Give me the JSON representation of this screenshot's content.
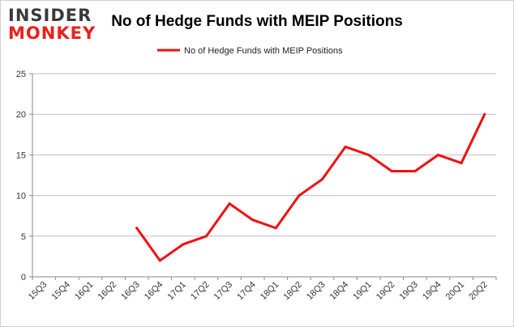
{
  "brand": {
    "line1": "INSIDER",
    "line2": "MONKEY"
  },
  "colors": {
    "series": "#ee1111",
    "brand_red": "#e8211e",
    "brand_dark": "#3a3a3a",
    "grid": "#bfbfbf",
    "axis": "#888888"
  },
  "chart_data": {
    "type": "line",
    "title": "No of Hedge Funds with MEIP Positions",
    "xlabel": "",
    "ylabel": "",
    "ylim": [
      0,
      25
    ],
    "yticks": [
      0,
      5,
      10,
      15,
      20,
      25
    ],
    "grid": true,
    "legend_position": "top-center",
    "categories": [
      "15Q3",
      "15Q4",
      "16Q1",
      "16Q2",
      "16Q3",
      "16Q4",
      "17Q1",
      "17Q2",
      "17Q3",
      "17Q4",
      "18Q1",
      "18Q2",
      "18Q3",
      "18Q4",
      "19Q1",
      "19Q2",
      "19Q3",
      "19Q4",
      "20Q1",
      "20Q2"
    ],
    "series": [
      {
        "name": "No of Hedge Funds with MEIP Positions",
        "values": [
          null,
          null,
          null,
          null,
          6,
          2,
          4,
          5,
          9,
          7,
          6,
          10,
          12,
          16,
          15,
          13,
          13,
          15,
          14,
          20
        ]
      }
    ]
  }
}
